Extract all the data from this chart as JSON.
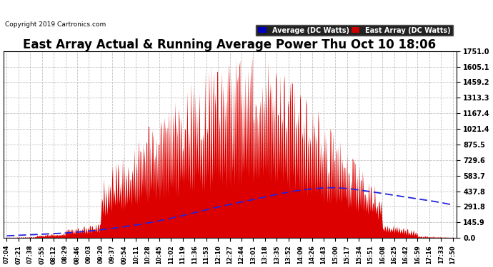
{
  "title": "East Array Actual & Running Average Power Thu Oct 10 18:06",
  "copyright": "Copyright 2019 Cartronics.com",
  "yticks": [
    0.0,
    145.9,
    291.8,
    437.8,
    583.7,
    729.6,
    875.5,
    1021.4,
    1167.4,
    1313.3,
    1459.2,
    1605.1,
    1751.0
  ],
  "ymax": 1751.0,
  "ymin": 0.0,
  "legend_labels": [
    "Average (DC Watts)",
    "East Array (DC Watts)"
  ],
  "legend_bg_colors": [
    "#0000bb",
    "#cc0000"
  ],
  "legend_text_color": "#ffffff",
  "bar_color": "#dd0000",
  "avg_line_color": "#2222dd",
  "background_color": "#ffffff",
  "plot_bg_color": "#ffffff",
  "grid_color": "#bbbbbb",
  "title_fontsize": 12,
  "xtick_labels": [
    "07:04",
    "07:21",
    "07:38",
    "07:55",
    "08:12",
    "08:29",
    "08:46",
    "09:03",
    "09:20",
    "09:37",
    "09:54",
    "10:11",
    "10:28",
    "10:45",
    "11:02",
    "11:19",
    "11:36",
    "11:53",
    "12:10",
    "12:27",
    "12:44",
    "13:01",
    "13:18",
    "13:35",
    "13:52",
    "14:09",
    "14:26",
    "14:43",
    "15:00",
    "15:17",
    "15:34",
    "15:51",
    "16:08",
    "16:25",
    "16:42",
    "16:59",
    "17:16",
    "17:33",
    "17:50"
  ],
  "avg_x_ctrl": [
    0,
    3,
    6,
    9,
    12,
    15,
    18,
    21,
    24,
    26,
    28,
    30,
    33,
    36,
    38
  ],
  "avg_y_ctrl": [
    20,
    35,
    55,
    90,
    140,
    210,
    290,
    360,
    430,
    460,
    470,
    450,
    400,
    350,
    310
  ]
}
